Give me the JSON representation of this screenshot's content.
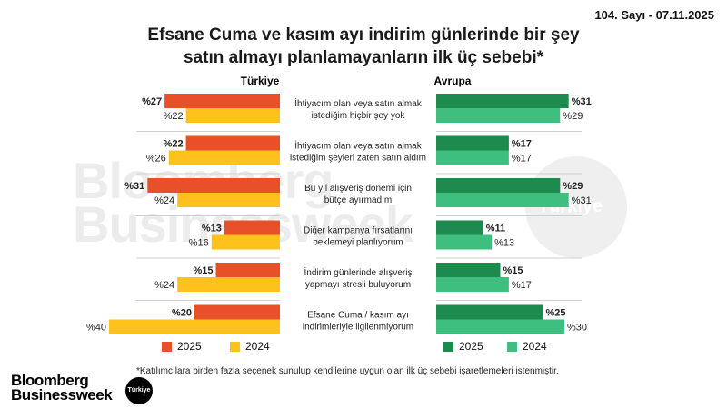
{
  "issue": "104. Sayı - 07.11.2025",
  "title_line1": "Efsane Cuma ve kasım ayı indirim günlerinde bir şey",
  "title_line2": "satın almayı planlamayanların ilk üç sebebi*",
  "watermark_line1": "Bloomberg",
  "watermark_line2": "Businessweek",
  "watermark_circle": "Türkiye",
  "footnote": "*Katılımcılara birden fazla seçenek sunulup kendilerine uygun olan ilk üç sebebi işaretlemeleri istenmiştir.",
  "logo": {
    "line1": "Bloomberg",
    "line2": "Businessweek",
    "badge": "Türkiye"
  },
  "colors": {
    "turkiye_2025": "#E8502A",
    "turkiye_2024": "#FFC21C",
    "avrupa_2025": "#1D8A4E",
    "avrupa_2024": "#3FBF7F"
  },
  "chart_data": {
    "type": "bar",
    "orientation": "horizontal",
    "value_prefix": "%",
    "categories": [
      [
        "İhtiyacım olan veya satın almak",
        "istediğim hiçbir şey yok"
      ],
      [
        "İhtiyacım olan veya satın almak",
        "istediğim şeyleri zaten satın aldım"
      ],
      [
        "Bu yıl alışveriş dönemi için",
        "bütçe ayırmadım"
      ],
      [
        "Diğer kampanya fırsatlarını",
        "beklemeyi planlıyorum"
      ],
      [
        "İndirim günlerinde alışveriş",
        "yapmayı stresli buluyorum"
      ],
      [
        "Efsane Cuma / kasım ayı",
        "indirimleriyle ilgilenmiyorum"
      ]
    ],
    "panels": [
      {
        "title": "Türkiye",
        "direction": "left",
        "series": [
          {
            "name": "2025",
            "values": [
              27,
              22,
              31,
              13,
              15,
              20
            ]
          },
          {
            "name": "2024",
            "values": [
              22,
              26,
              24,
              16,
              24,
              40
            ]
          }
        ]
      },
      {
        "title": "Avrupa",
        "direction": "right",
        "series": [
          {
            "name": "2025",
            "values": [
              31,
              17,
              29,
              11,
              15,
              25
            ]
          },
          {
            "name": "2024",
            "values": [
              29,
              17,
              31,
              13,
              17,
              30
            ]
          }
        ]
      }
    ],
    "legend": [
      "2025",
      "2024"
    ],
    "legend_position": "bottom"
  }
}
